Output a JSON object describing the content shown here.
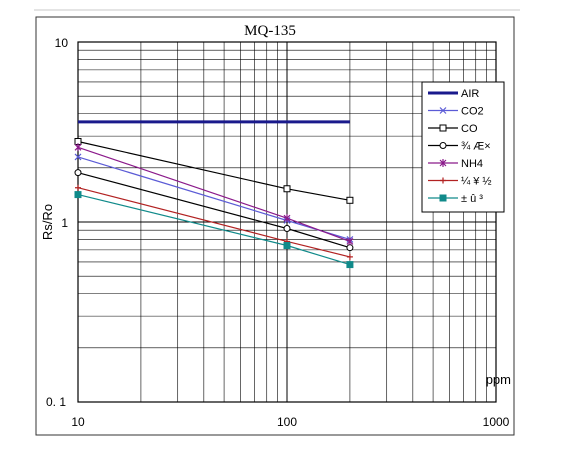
{
  "chart_data": {
    "type": "line",
    "title": "MQ-135",
    "xlabel": "",
    "ylabel": "Rs/Ro",
    "x_unit": "ppm",
    "x_scale": "log",
    "y_scale": "log",
    "xlim": [
      10,
      1000
    ],
    "ylim": [
      0.1,
      10
    ],
    "x_tick_labels": [
      "10",
      "100",
      "1000"
    ],
    "y_tick_labels": [
      "10",
      "1",
      "0. 1"
    ],
    "grid": true,
    "legend_position": "right",
    "series": [
      {
        "name": "AIR",
        "color": "#1a1a8c",
        "marker": "none",
        "x": [
          10,
          200
        ],
        "y": [
          3.6,
          3.6
        ]
      },
      {
        "name": "CO2",
        "color": "#5b5bd6",
        "marker": "x",
        "x": [
          10,
          100,
          200
        ],
        "y": [
          2.3,
          1.02,
          0.8
        ]
      },
      {
        "name": "CO",
        "color": "#000000",
        "marker": "square",
        "x": [
          10,
          100,
          200
        ],
        "y": [
          2.8,
          1.53,
          1.32
        ]
      },
      {
        "name": "¾ Æ×",
        "color": "#000000",
        "marker": "circle",
        "x": [
          10,
          100,
          200
        ],
        "y": [
          1.88,
          0.92,
          0.72
        ]
      },
      {
        "name": "NH4",
        "color": "#8b1a8b",
        "marker": "star",
        "x": [
          10,
          100,
          200
        ],
        "y": [
          2.6,
          1.05,
          0.78
        ]
      },
      {
        "name": "¼ ¥ ½",
        "color": "#b22222",
        "marker": "plus",
        "x": [
          10,
          100,
          200
        ],
        "y": [
          1.55,
          0.78,
          0.64
        ]
      },
      {
        "name": "± û ³",
        "color": "#108a8a",
        "marker": "filled-square",
        "x": [
          10,
          100,
          200
        ],
        "y": [
          1.42,
          0.74,
          0.58
        ]
      }
    ]
  }
}
